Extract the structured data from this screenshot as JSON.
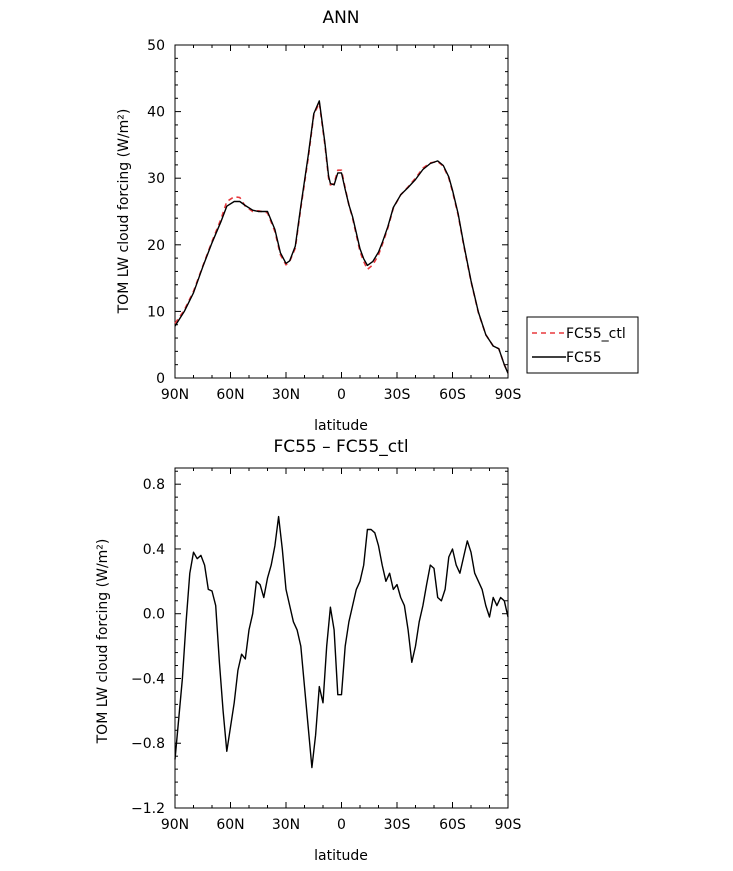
{
  "chart_data": [
    {
      "type": "line",
      "title": "ANN",
      "xlabel": "latitude",
      "ylabel": "TOM LW cloud forcing (W/m²)",
      "xlim": [
        90,
        -90
      ],
      "ylim": [
        0,
        50
      ],
      "xticks": [
        90,
        60,
        30,
        0,
        -30,
        -60,
        -90
      ],
      "xtick_labels": [
        "90N",
        "60N",
        "30N",
        "0",
        "30S",
        "60S",
        "90S"
      ],
      "yticks": [
        0,
        10,
        20,
        30,
        40,
        50
      ],
      "ytick_labels": [
        "0",
        "10",
        "20",
        "30",
        "40",
        "50"
      ],
      "legend": {
        "placement": "right",
        "items": [
          "FC55_ctl",
          "FC55"
        ]
      },
      "series": [
        {
          "name": "FC55_ctl",
          "color": "#e8383d",
          "dash": "dashed",
          "x": [
            90,
            85,
            80,
            75,
            70,
            65,
            62,
            58,
            55,
            52,
            48,
            45,
            40,
            36,
            33,
            30,
            28,
            25,
            22,
            18,
            15,
            12,
            9,
            7,
            6,
            4,
            2,
            0,
            -2,
            -4,
            -6,
            -8,
            -10,
            -12,
            -14,
            -17,
            -20,
            -22,
            -25,
            -28,
            -32,
            -36,
            -40,
            -44,
            -48,
            -52,
            -55,
            -58,
            -60,
            -63,
            -66,
            -70,
            -74,
            -78,
            -82,
            -85,
            -88,
            -90
          ],
          "y": [
            8.2,
            10.2,
            13.0,
            16.8,
            20.5,
            24.0,
            26.5,
            27.2,
            27.1,
            25.8,
            25.0,
            25.1,
            24.8,
            22.0,
            18.5,
            17.0,
            17.5,
            19.5,
            25.5,
            33.0,
            39.5,
            41.3,
            35.0,
            30.0,
            29.0,
            29.2,
            31.2,
            31.2,
            28.5,
            26.0,
            24.0,
            21.5,
            19.0,
            17.5,
            16.3,
            17.0,
            18.5,
            20.0,
            22.5,
            25.5,
            27.5,
            28.7,
            30.0,
            31.5,
            32.3,
            32.5,
            31.8,
            30.0,
            28.0,
            24.5,
            20.0,
            14.5,
            9.8,
            6.5,
            4.8,
            4.4,
            2.0,
            0.8
          ]
        },
        {
          "name": "FC55",
          "color": "#000000",
          "dash": "solid",
          "x": [
            90,
            85,
            80,
            75,
            70,
            65,
            62,
            58,
            55,
            52,
            48,
            45,
            40,
            36,
            33,
            30,
            28,
            25,
            22,
            18,
            15,
            12,
            9,
            7,
            6,
            4,
            2,
            0,
            -2,
            -4,
            -6,
            -8,
            -10,
            -12,
            -14,
            -17,
            -20,
            -22,
            -25,
            -28,
            -32,
            -36,
            -40,
            -44,
            -48,
            -52,
            -55,
            -58,
            -60,
            -63,
            -66,
            -70,
            -74,
            -78,
            -82,
            -85,
            -88,
            -90
          ],
          "y": [
            7.8,
            10.0,
            12.8,
            16.7,
            20.3,
            23.6,
            25.8,
            26.5,
            26.5,
            25.9,
            25.2,
            25.0,
            25.0,
            22.3,
            18.8,
            17.2,
            17.6,
            19.8,
            25.8,
            33.4,
            39.7,
            41.6,
            35.3,
            30.3,
            29.2,
            29.0,
            30.8,
            30.8,
            28.3,
            26.0,
            24.2,
            21.8,
            19.4,
            17.9,
            16.9,
            17.5,
            18.9,
            20.3,
            22.7,
            25.6,
            27.5,
            28.6,
            29.8,
            31.3,
            32.2,
            32.6,
            31.9,
            30.2,
            28.2,
            24.7,
            20.2,
            14.6,
            9.9,
            6.5,
            4.8,
            4.4,
            2.0,
            0.7
          ]
        }
      ]
    },
    {
      "type": "line",
      "title": "FC55 – FC55_ctl",
      "xlabel": "latitude",
      "ylabel": "TOM LW cloud forcing (W/m²)",
      "xlim": [
        90,
        -90
      ],
      "ylim": [
        -1.2,
        0.9
      ],
      "xticks": [
        90,
        60,
        30,
        0,
        -30,
        -60,
        -90
      ],
      "xtick_labels": [
        "90N",
        "60N",
        "30N",
        "0",
        "30S",
        "60S",
        "90S"
      ],
      "yticks": [
        -1.2,
        -0.8,
        -0.4,
        0.0,
        0.4,
        0.8
      ],
      "ytick_labels": [
        "−1.2",
        "−0.8",
        "−0.4",
        "0.0",
        "0.4",
        "0.8"
      ],
      "series": [
        {
          "name": "FC55 – FC55_ctl",
          "color": "#000000",
          "dash": "solid",
          "x": [
            90,
            88,
            86,
            84,
            82,
            80,
            78,
            76,
            74,
            72,
            70,
            68,
            66,
            64,
            62,
            60,
            58,
            56,
            54,
            52,
            50,
            48,
            46,
            44,
            42,
            40,
            38,
            36,
            34,
            32,
            30,
            28,
            26,
            24,
            22,
            20,
            18,
            16,
            14,
            12,
            10,
            8,
            6,
            4,
            2,
            0,
            -2,
            -4,
            -6,
            -8,
            -10,
            -12,
            -14,
            -16,
            -18,
            -20,
            -22,
            -24,
            -26,
            -28,
            -30,
            -32,
            -34,
            -36,
            -38,
            -40,
            -42,
            -44,
            -46,
            -48,
            -50,
            -52,
            -54,
            -56,
            -58,
            -60,
            -62,
            -64,
            -66,
            -68,
            -70,
            -72,
            -74,
            -76,
            -78,
            -80,
            -82,
            -84,
            -86,
            -88,
            -90
          ],
          "y": [
            -0.9,
            -0.65,
            -0.4,
            -0.05,
            0.25,
            0.38,
            0.34,
            0.36,
            0.3,
            0.15,
            0.14,
            0.05,
            -0.3,
            -0.6,
            -0.85,
            -0.7,
            -0.55,
            -0.35,
            -0.25,
            -0.28,
            -0.1,
            0.0,
            0.2,
            0.18,
            0.1,
            0.22,
            0.3,
            0.42,
            0.6,
            0.4,
            0.15,
            0.05,
            -0.05,
            -0.1,
            -0.2,
            -0.45,
            -0.7,
            -0.95,
            -0.75,
            -0.45,
            -0.55,
            -0.2,
            0.04,
            -0.1,
            -0.5,
            -0.5,
            -0.2,
            -0.05,
            0.05,
            0.15,
            0.2,
            0.3,
            0.52,
            0.52,
            0.5,
            0.42,
            0.3,
            0.2,
            0.25,
            0.15,
            0.18,
            0.1,
            0.05,
            -0.1,
            -0.3,
            -0.2,
            -0.05,
            0.05,
            0.18,
            0.3,
            0.28,
            0.1,
            0.08,
            0.15,
            0.35,
            0.4,
            0.3,
            0.25,
            0.35,
            0.45,
            0.38,
            0.25,
            0.2,
            0.15,
            0.05,
            -0.02,
            0.1,
            0.05,
            0.1,
            0.08,
            -0.02
          ]
        }
      ]
    }
  ]
}
